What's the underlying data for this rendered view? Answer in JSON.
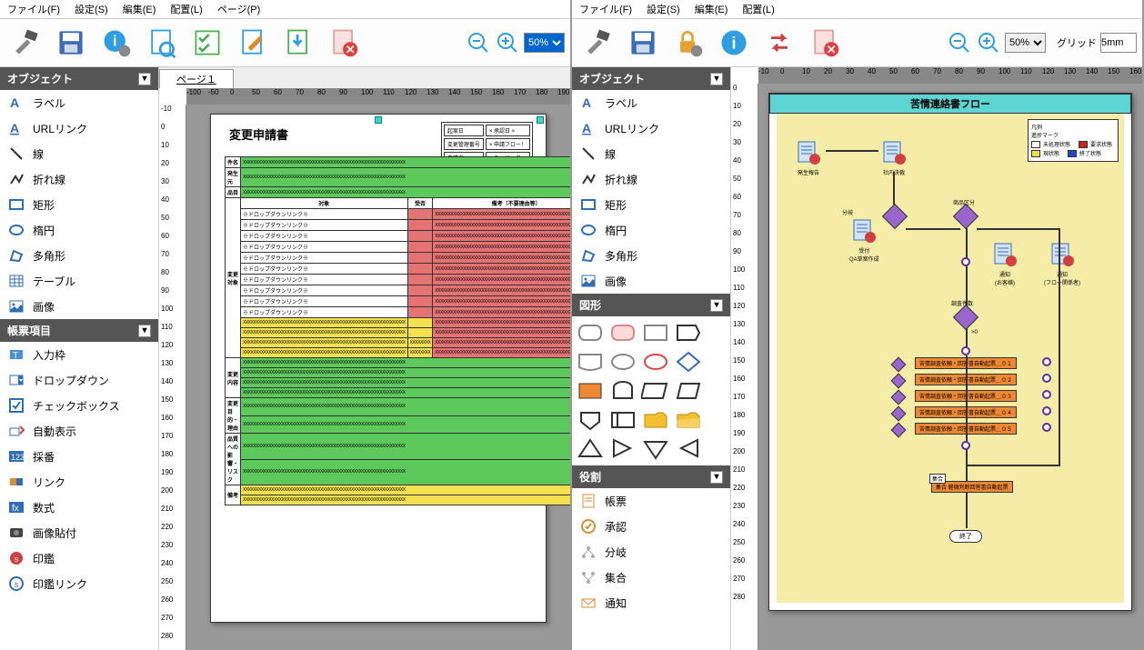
{
  "left": {
    "menus": [
      "ファイル(F)",
      "設定(S)",
      "編集(E)",
      "配置(L)",
      "ページ(P)"
    ],
    "zoom": "50%",
    "tab": "ページ１",
    "panels": {
      "object": {
        "title": "オブジェクト",
        "items": [
          "ラベル",
          "URLリンク",
          "線",
          "折れ線",
          "矩形",
          "楕円",
          "多角形",
          "テーブル",
          "画像"
        ]
      },
      "formItems": {
        "title": "帳票項目",
        "items": [
          "入力枠",
          "ドロップダウン",
          "チェックボックス",
          "自動表示",
          "採番",
          "リンク",
          "数式",
          "画像貼付",
          "印鑑",
          "印鑑リンク"
        ]
      }
    },
    "rulerH": [
      "-100",
      "-50",
      "0",
      "50",
      "60",
      "70",
      "80",
      "90",
      "100",
      "110",
      "120",
      "130",
      "140",
      "150",
      "160",
      "170",
      "180",
      "190",
      "200"
    ],
    "rulerV": [
      "-10",
      "0",
      "10",
      "20",
      "30",
      "40",
      "50",
      "60",
      "70",
      "80",
      "90",
      "100",
      "110",
      "120",
      "130",
      "140",
      "150",
      "160",
      "170",
      "180",
      "190",
      "200",
      "210",
      "220",
      "230",
      "240",
      "250",
      "260",
      "270",
      "280"
    ],
    "doc": {
      "title": "変更申請書",
      "hdr": [
        [
          "起案日",
          "× 承認日 ×"
        ],
        [
          "変更管理番号",
          "× 申請フロー！"
        ],
        [
          "申請者",
          "× ユーザー名 ×"
        ]
      ],
      "rows1": [
        [
          "件名",
          "green"
        ],
        [
          "発生元",
          "green"
        ],
        [
          "品目",
          "green"
        ]
      ],
      "section2_header": [
        "変更対象",
        "対象",
        "受否",
        "備考（不要理由等）"
      ],
      "dropdown_label": "※ドロップダウンリンク※",
      "dropdown_rows": 12,
      "section3": [
        [
          "変更内容",
          "green",
          4
        ],
        [
          "変更目的・理由",
          "green",
          2
        ],
        [
          "品質への影響・リスク",
          "green",
          2
        ],
        [
          "備考",
          "yellow",
          2
        ]
      ]
    }
  },
  "right": {
    "menus": [
      "ファイル(F)",
      "設定(S)",
      "編集(E)",
      "配置(L)"
    ],
    "zoom": "50%",
    "gridLabel": "グリッド",
    "gridValue": "5mm",
    "panels": {
      "object": {
        "title": "オブジェクト",
        "items": [
          "ラベル",
          "URLリンク",
          "線",
          "折れ線",
          "矩形",
          "楕円",
          "多角形",
          "画像"
        ]
      },
      "shapes": {
        "title": "図形"
      },
      "roles": {
        "title": "役割",
        "items": [
          "帳票",
          "承認",
          "分岐",
          "集合",
          "通知"
        ]
      }
    },
    "rulerH": [
      "-10",
      "0",
      "10",
      "20",
      "30",
      "40",
      "50",
      "60",
      "70",
      "80",
      "90",
      "100",
      "110",
      "120",
      "130",
      "140",
      "150",
      "160",
      "170",
      "180",
      "190",
      "200"
    ],
    "rulerV": [
      "0",
      "10",
      "20",
      "30",
      "40",
      "50",
      "60",
      "70",
      "80",
      "90",
      "100",
      "110",
      "120",
      "130",
      "140",
      "150",
      "160",
      "170",
      "180",
      "190",
      "200",
      "210",
      "220",
      "230",
      "240",
      "250",
      "260",
      "270",
      "280"
    ],
    "flow": {
      "title": "苦情連絡書フロー",
      "legend": {
        "title": "凡例\\n進捗マーク",
        "items": [
          {
            "color": "#ffffff",
            "label": "未処理状態"
          },
          {
            "color": "#cc2222",
            "label": "要求状態"
          },
          {
            "color": "#eedd44",
            "label": "現状態"
          },
          {
            "color": "#2244cc",
            "label": "終了状態"
          }
        ]
      },
      "start_nodes": [
        "発生報告",
        "社内決裁"
      ],
      "mid_nodes": [
        "受付\\nQA草案作成",
        "通知\\n(お客様)",
        "通知\\n(フロー関係者)"
      ],
      "diamond_labels": [
        "分岐",
        "商品区分",
        "調査件数",
        ">0",
        "分岐"
      ],
      "proc_boxes": [
        "苦情調査依頼・回答書自動起票＿０１",
        "苦情調査依頼・回答書自動起票＿０２",
        "苦情調査依頼・回答書自動起票＿０３",
        "苦情調査依頼・回答書自動起票＿０４",
        "苦情調査依頼・回答書自動起票＿０５"
      ],
      "summary_box": "集合\\n軽微判断回答書自動起票",
      "end": "終了"
    }
  },
  "colors": {
    "green": "#5dc95d",
    "yellow": "#f5e050",
    "red": "#e57373",
    "orange": "#ee8833",
    "flowBg": "#f5eca8",
    "titleBar": "#5dd5d5",
    "purple": "#9966cc"
  }
}
